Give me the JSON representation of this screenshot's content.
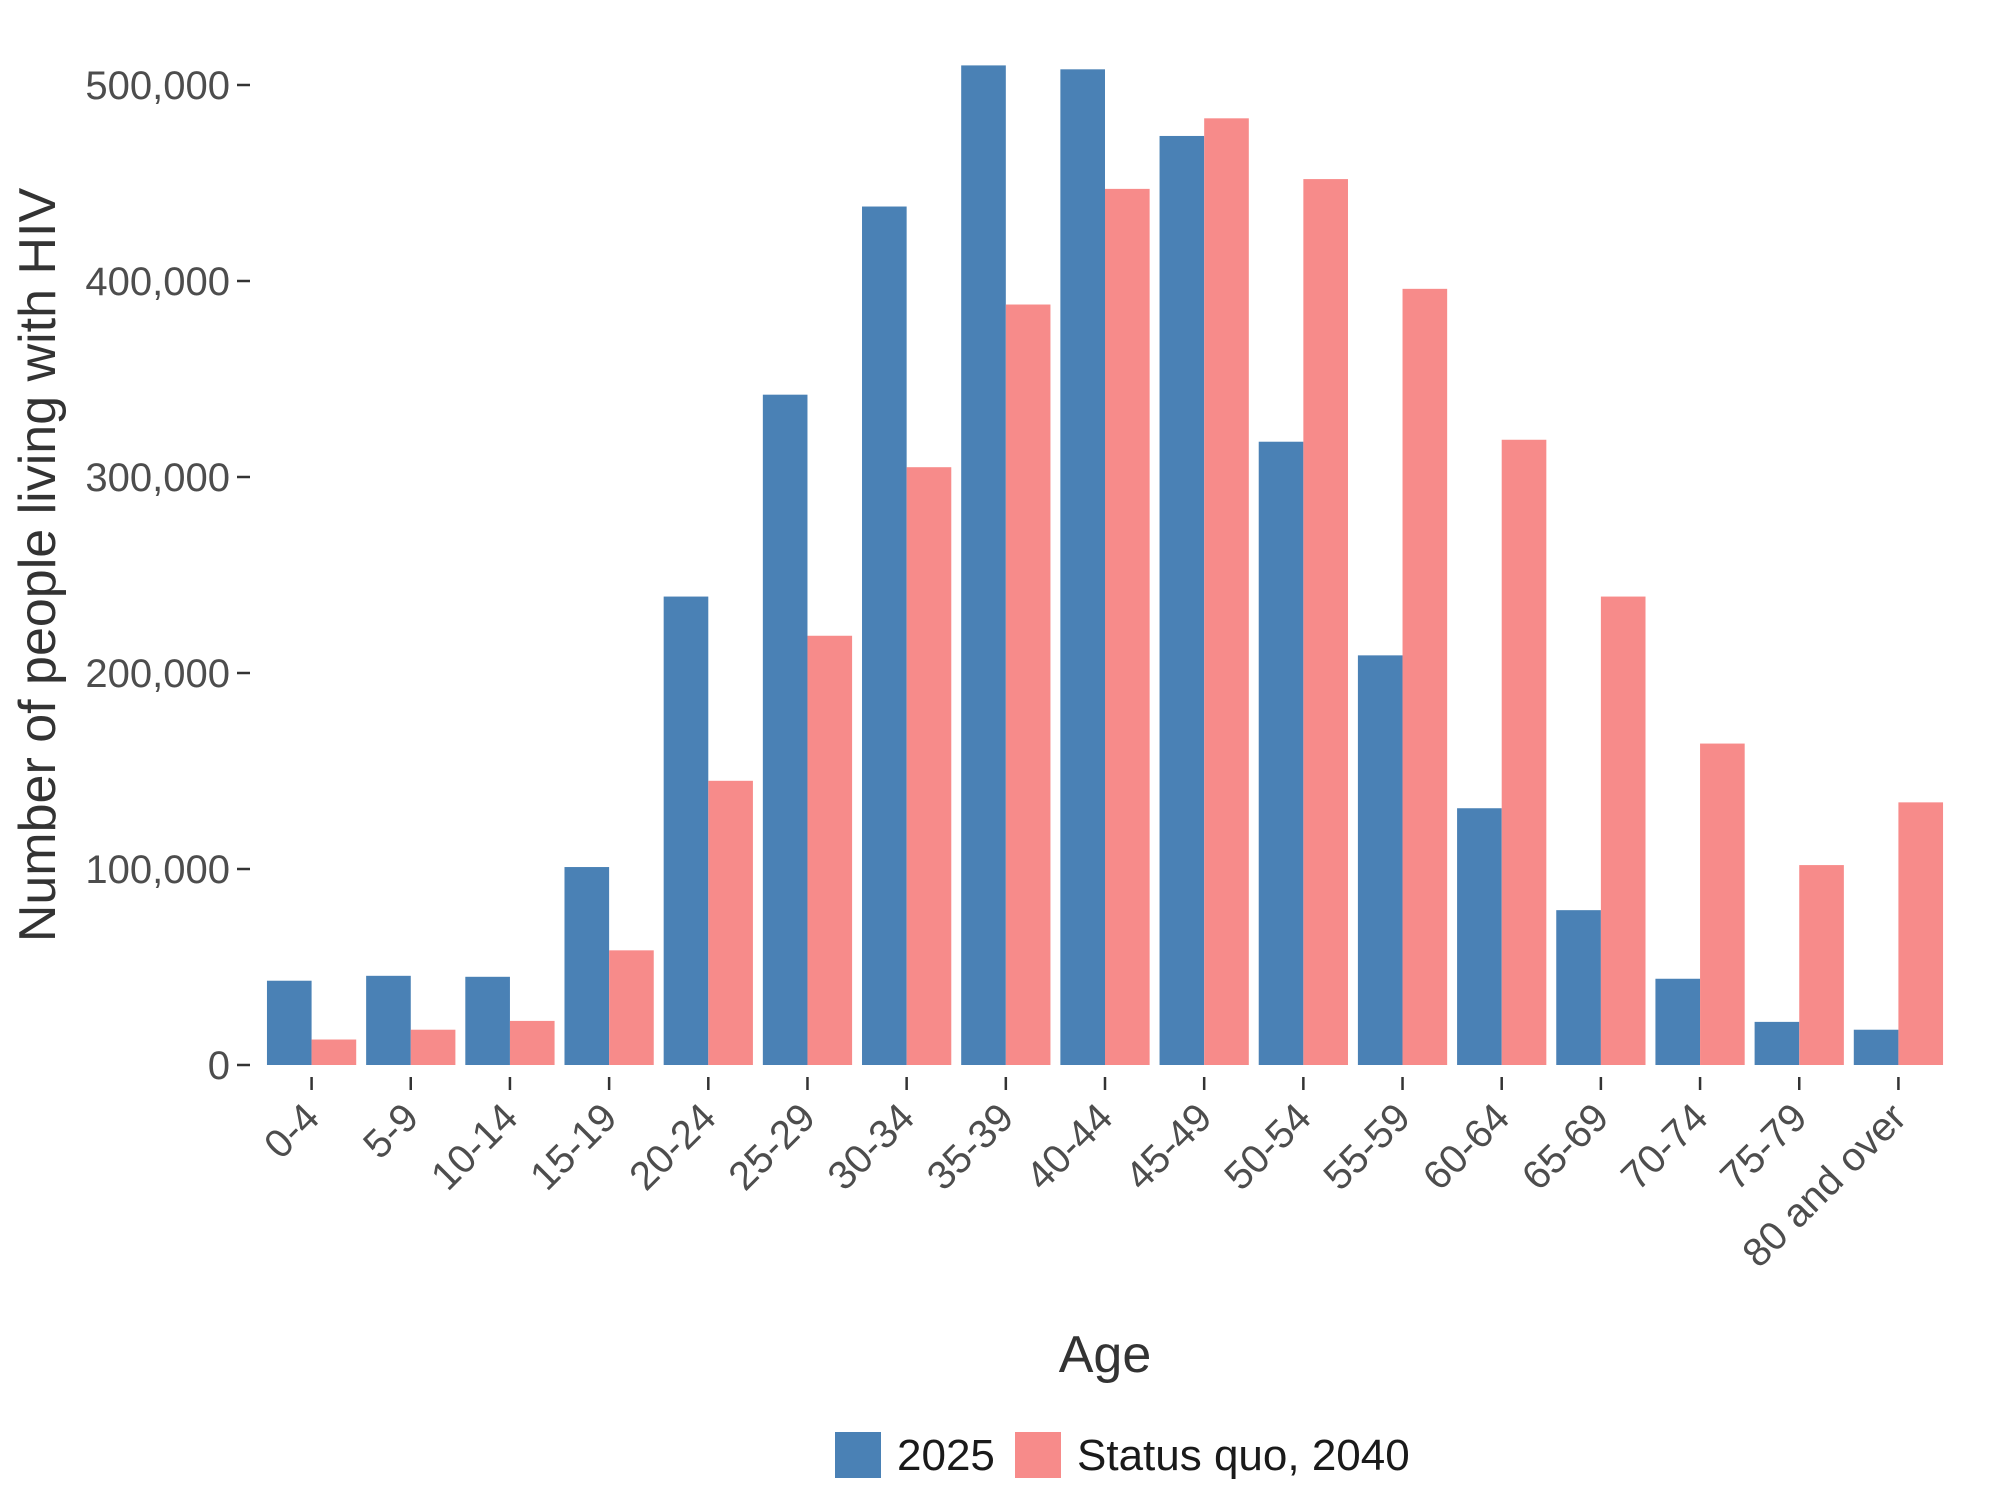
{
  "chart_data": {
    "type": "bar",
    "title": "",
    "xlabel": "Age",
    "ylabel": "Number of people living with HIV",
    "categories": [
      "0-4",
      "5-9",
      "10-14",
      "15-19",
      "20-24",
      "25-29",
      "30-34",
      "35-39",
      "40-44",
      "45-49",
      "50-54",
      "55-59",
      "60-64",
      "65-69",
      "70-74",
      "75-79",
      "80 and over"
    ],
    "series": [
      {
        "name": "2025",
        "color": "#4a81b5",
        "values": [
          43000,
          45500,
          45000,
          101000,
          239000,
          342000,
          438000,
          510000,
          508000,
          474000,
          318000,
          209000,
          131000,
          79000,
          44000,
          22000,
          18000
        ]
      },
      {
        "name": "Status quo, 2040",
        "color": "#f78b8a",
        "values": [
          13000,
          18000,
          22500,
          58500,
          145000,
          219000,
          305000,
          388000,
          447000,
          483000,
          452000,
          396000,
          319000,
          239000,
          164000,
          102000,
          134000
        ]
      }
    ],
    "yticks": [
      {
        "value": 0,
        "label": "0"
      },
      {
        "value": 100000,
        "label": "100,000"
      },
      {
        "value": 200000,
        "label": "200,000"
      },
      {
        "value": 300000,
        "label": "300,000"
      },
      {
        "value": 400000,
        "label": "400,000"
      },
      {
        "value": 500000,
        "label": "500,000"
      }
    ],
    "ylim": [
      0,
      520000
    ],
    "grid": false,
    "legend_position": "bottom"
  }
}
